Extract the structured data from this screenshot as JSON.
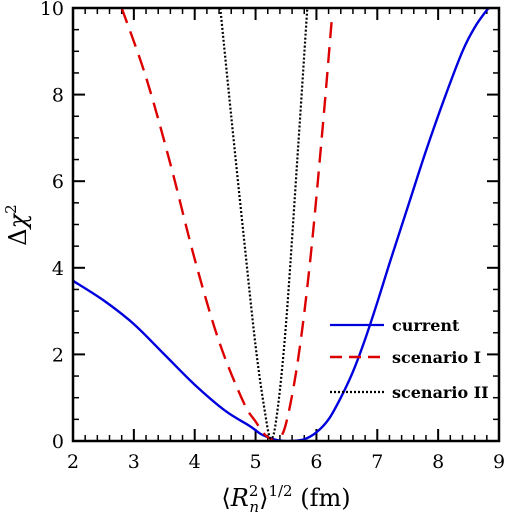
{
  "chart_data": {
    "type": "line",
    "xlabel_parts": {
      "open": "⟨",
      "var": "R",
      "sup": "2",
      "sub": "n",
      "close": "⟩",
      "power": "1/2",
      "unit": " (fm)"
    },
    "ylabel_parts": {
      "delta": "Δ",
      "var": "χ",
      "sup": "2"
    },
    "xlim": [
      2,
      9
    ],
    "ylim": [
      0,
      10
    ],
    "x_ticks": [
      "2",
      "3",
      "4",
      "5",
      "6",
      "7",
      "8",
      "9"
    ],
    "y_ticks": [
      "0",
      "2",
      "4",
      "6",
      "8",
      "10"
    ],
    "grid": false,
    "legend_position": "bottom-right",
    "series": [
      {
        "name": "current",
        "color": "#0000dd",
        "dash": "solid",
        "x": [
          2.0,
          2.5,
          3.0,
          3.5,
          4.0,
          4.5,
          4.9,
          5.1,
          5.3,
          5.45,
          5.6,
          5.8,
          6.0,
          6.2,
          6.4,
          6.6,
          6.8,
          7.0,
          7.2,
          7.5,
          7.8,
          8.1,
          8.4,
          8.6,
          8.8,
          8.85
        ],
        "y": [
          3.7,
          3.25,
          2.7,
          2.0,
          1.3,
          0.7,
          0.35,
          0.15,
          0.04,
          0.0,
          0.0,
          0.04,
          0.2,
          0.5,
          1.0,
          1.6,
          2.35,
          3.2,
          4.1,
          5.4,
          6.7,
          7.9,
          9.0,
          9.55,
          9.95,
          10.0
        ]
      },
      {
        "name": "scenario I",
        "color": "#dd0000",
        "dash": "dashed",
        "x": [
          2.8,
          3.2,
          3.6,
          4.0,
          4.4,
          4.8,
          5.0,
          5.15,
          5.25,
          5.35,
          5.5,
          5.7,
          5.9,
          6.1,
          6.25
        ],
        "y": [
          10.0,
          8.4,
          6.4,
          4.2,
          2.3,
          0.9,
          0.45,
          0.15,
          0.05,
          0.0,
          0.4,
          1.9,
          4.2,
          7.2,
          9.7
        ]
      },
      {
        "name": "scenario II",
        "color": "#000000",
        "dash": "dotted",
        "x": [
          4.42,
          4.6,
          4.8,
          5.0,
          5.15,
          5.25,
          5.35,
          5.5,
          5.7,
          5.85
        ],
        "y": [
          10.0,
          7.5,
          4.8,
          2.2,
          0.7,
          0.05,
          0.6,
          2.7,
          6.8,
          10.0
        ]
      }
    ]
  }
}
